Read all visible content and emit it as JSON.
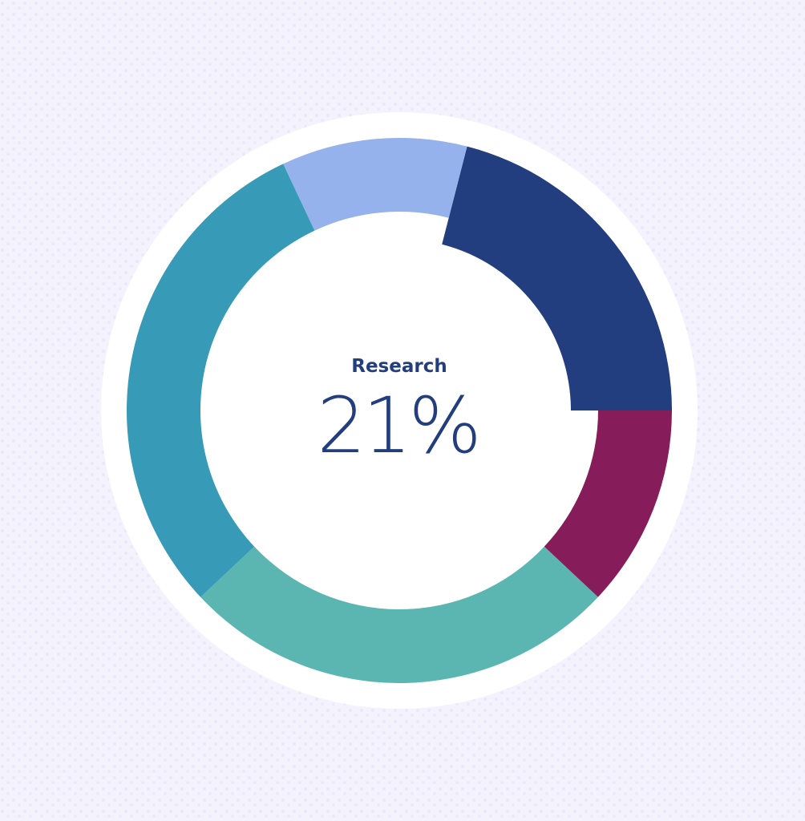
{
  "chart_data": {
    "type": "donut",
    "categories": [
      "Research",
      null,
      null,
      null,
      null
    ],
    "values": [
      21,
      12,
      26,
      30,
      11
    ],
    "value_labels": [
      "21%",
      null,
      null,
      null,
      null
    ],
    "colors": [
      "#233e7f",
      "#871c5a",
      "#5bb6b2",
      "#379bb8",
      "#95b2ec"
    ],
    "selected": 0
  }
}
